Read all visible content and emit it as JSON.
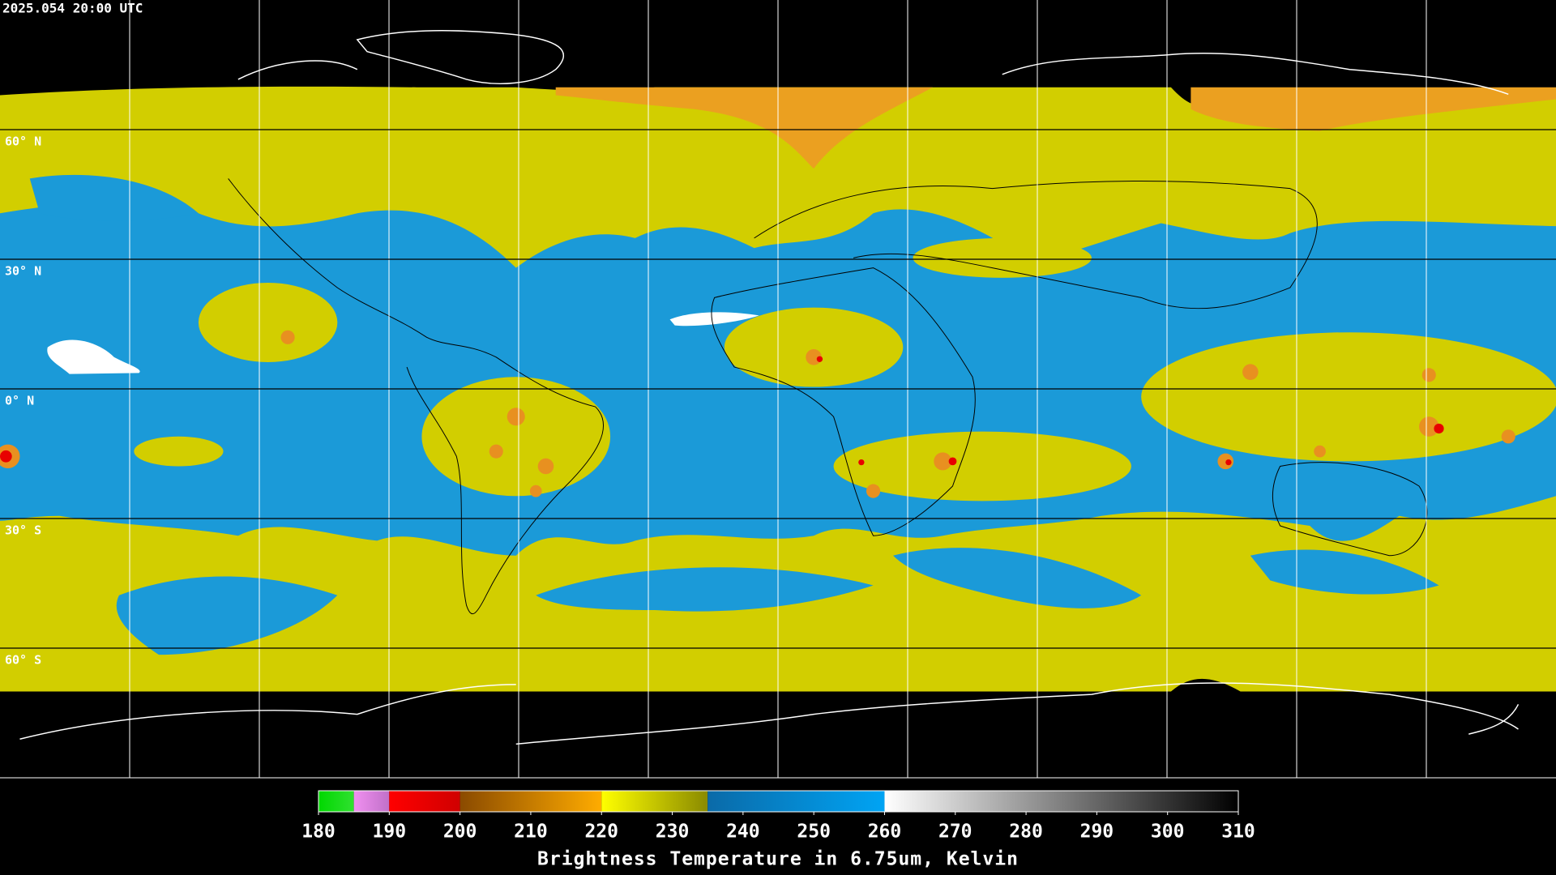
{
  "header": {
    "timestamp": "2025.054 20:00 UTC"
  },
  "map": {
    "lat_lines": [
      {
        "value": 60,
        "label": "60° N"
      },
      {
        "value": 30,
        "label": "30° N"
      },
      {
        "value": 0,
        "label": "0° N"
      },
      {
        "value": -30,
        "label": "30° S"
      },
      {
        "value": -60,
        "label": "60° S"
      }
    ]
  },
  "colorbar": {
    "title": "Brightness Temperature in 6.75um, Kelvin",
    "range": [
      180,
      310
    ],
    "ticks": [
      180,
      190,
      200,
      210,
      220,
      230,
      240,
      250,
      260,
      270,
      280,
      290,
      300,
      310
    ],
    "segments": [
      {
        "from": 180,
        "to": 185,
        "colors": [
          "#00d800",
          "#30e030"
        ]
      },
      {
        "from": 185,
        "to": 190,
        "colors": [
          "#f090f0",
          "#c070c8"
        ]
      },
      {
        "from": 190,
        "to": 200,
        "colors": [
          "#ff0000",
          "#d00000"
        ]
      },
      {
        "from": 200,
        "to": 220,
        "colors": [
          "#8a4a00",
          "#ffac00"
        ]
      },
      {
        "from": 220,
        "to": 235,
        "colors": [
          "#ffff00",
          "#8a8a00"
        ]
      },
      {
        "from": 235,
        "to": 260,
        "colors": [
          "#0a6aa8",
          "#00a4f4"
        ]
      },
      {
        "from": 260,
        "to": 310,
        "colors": [
          "#ffffff",
          "#000000"
        ]
      }
    ]
  }
}
